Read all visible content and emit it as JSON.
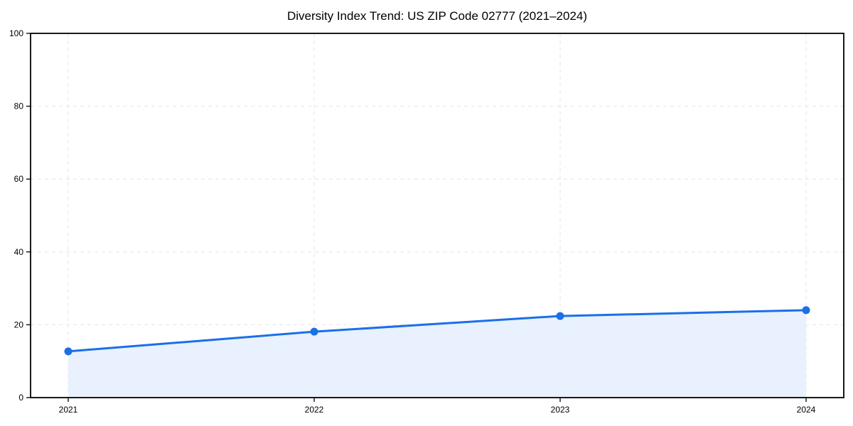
{
  "chart_data": {
    "type": "area",
    "title": "Diversity Index Trend: US ZIP Code 02777 (2021–2024)",
    "x": [
      "2021",
      "2022",
      "2023",
      "2024"
    ],
    "series": [
      {
        "name": "Diversity Index",
        "values": [
          12.7,
          18.1,
          22.4,
          24.0
        ]
      }
    ],
    "xlabel": "",
    "ylabel": "",
    "ylim": [
      0,
      100
    ],
    "yticks": [
      0,
      20,
      40,
      60,
      80,
      100
    ],
    "grid": true,
    "grid_style": "dashed",
    "legend": false,
    "colors": {
      "line": "#1b6fe8",
      "marker": "#1b6fe8",
      "fill": "#e8f1fd",
      "grid": "#e4e4e4",
      "spine": "#000000",
      "tick": "#000000",
      "text": "#000000",
      "background": "#ffffff"
    }
  }
}
